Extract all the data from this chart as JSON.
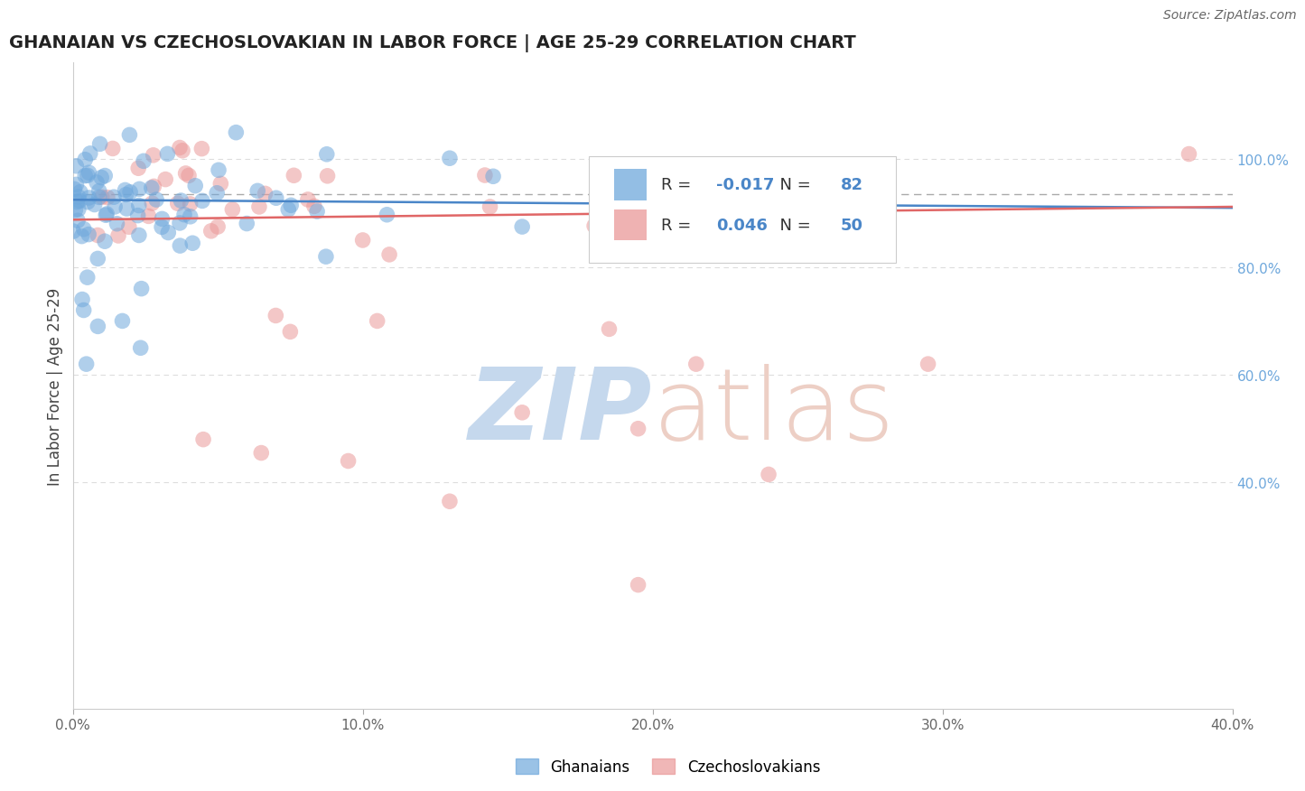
{
  "title": "GHANAIAN VS CZECHOSLOVAKIAN IN LABOR FORCE | AGE 25-29 CORRELATION CHART",
  "source_text": "Source: ZipAtlas.com",
  "ylabel": "In Labor Force | Age 25-29",
  "legend_label1": "Ghanaians",
  "legend_label2": "Czechoslovakians",
  "r1": -0.017,
  "n1": 82,
  "r2": 0.046,
  "n2": 50,
  "color1": "#6fa8dc",
  "color2": "#ea9999",
  "trendline1_color": "#4a86c8",
  "trendline2_color": "#e06666",
  "dashed_line_color": "#aaaaaa",
  "xlim": [
    0.0,
    0.4
  ],
  "ylim": [
    -0.02,
    1.18
  ],
  "xticks": [
    0.0,
    0.1,
    0.2,
    0.3,
    0.4
  ],
  "yticks_right": [
    0.4,
    0.6,
    0.8,
    1.0
  ],
  "watermark_zip_color": "#c5d8ed",
  "watermark_atlas_color": "#edcfc5",
  "background_color": "#ffffff",
  "title_color": "#222222",
  "source_color": "#666666",
  "ylabel_color": "#444444",
  "tick_color": "#666666",
  "right_tick_color": "#6fa8dc",
  "grid_color": "#dddddd",
  "legend_text_color": "#333333",
  "legend_value_color": "#4a86c8"
}
